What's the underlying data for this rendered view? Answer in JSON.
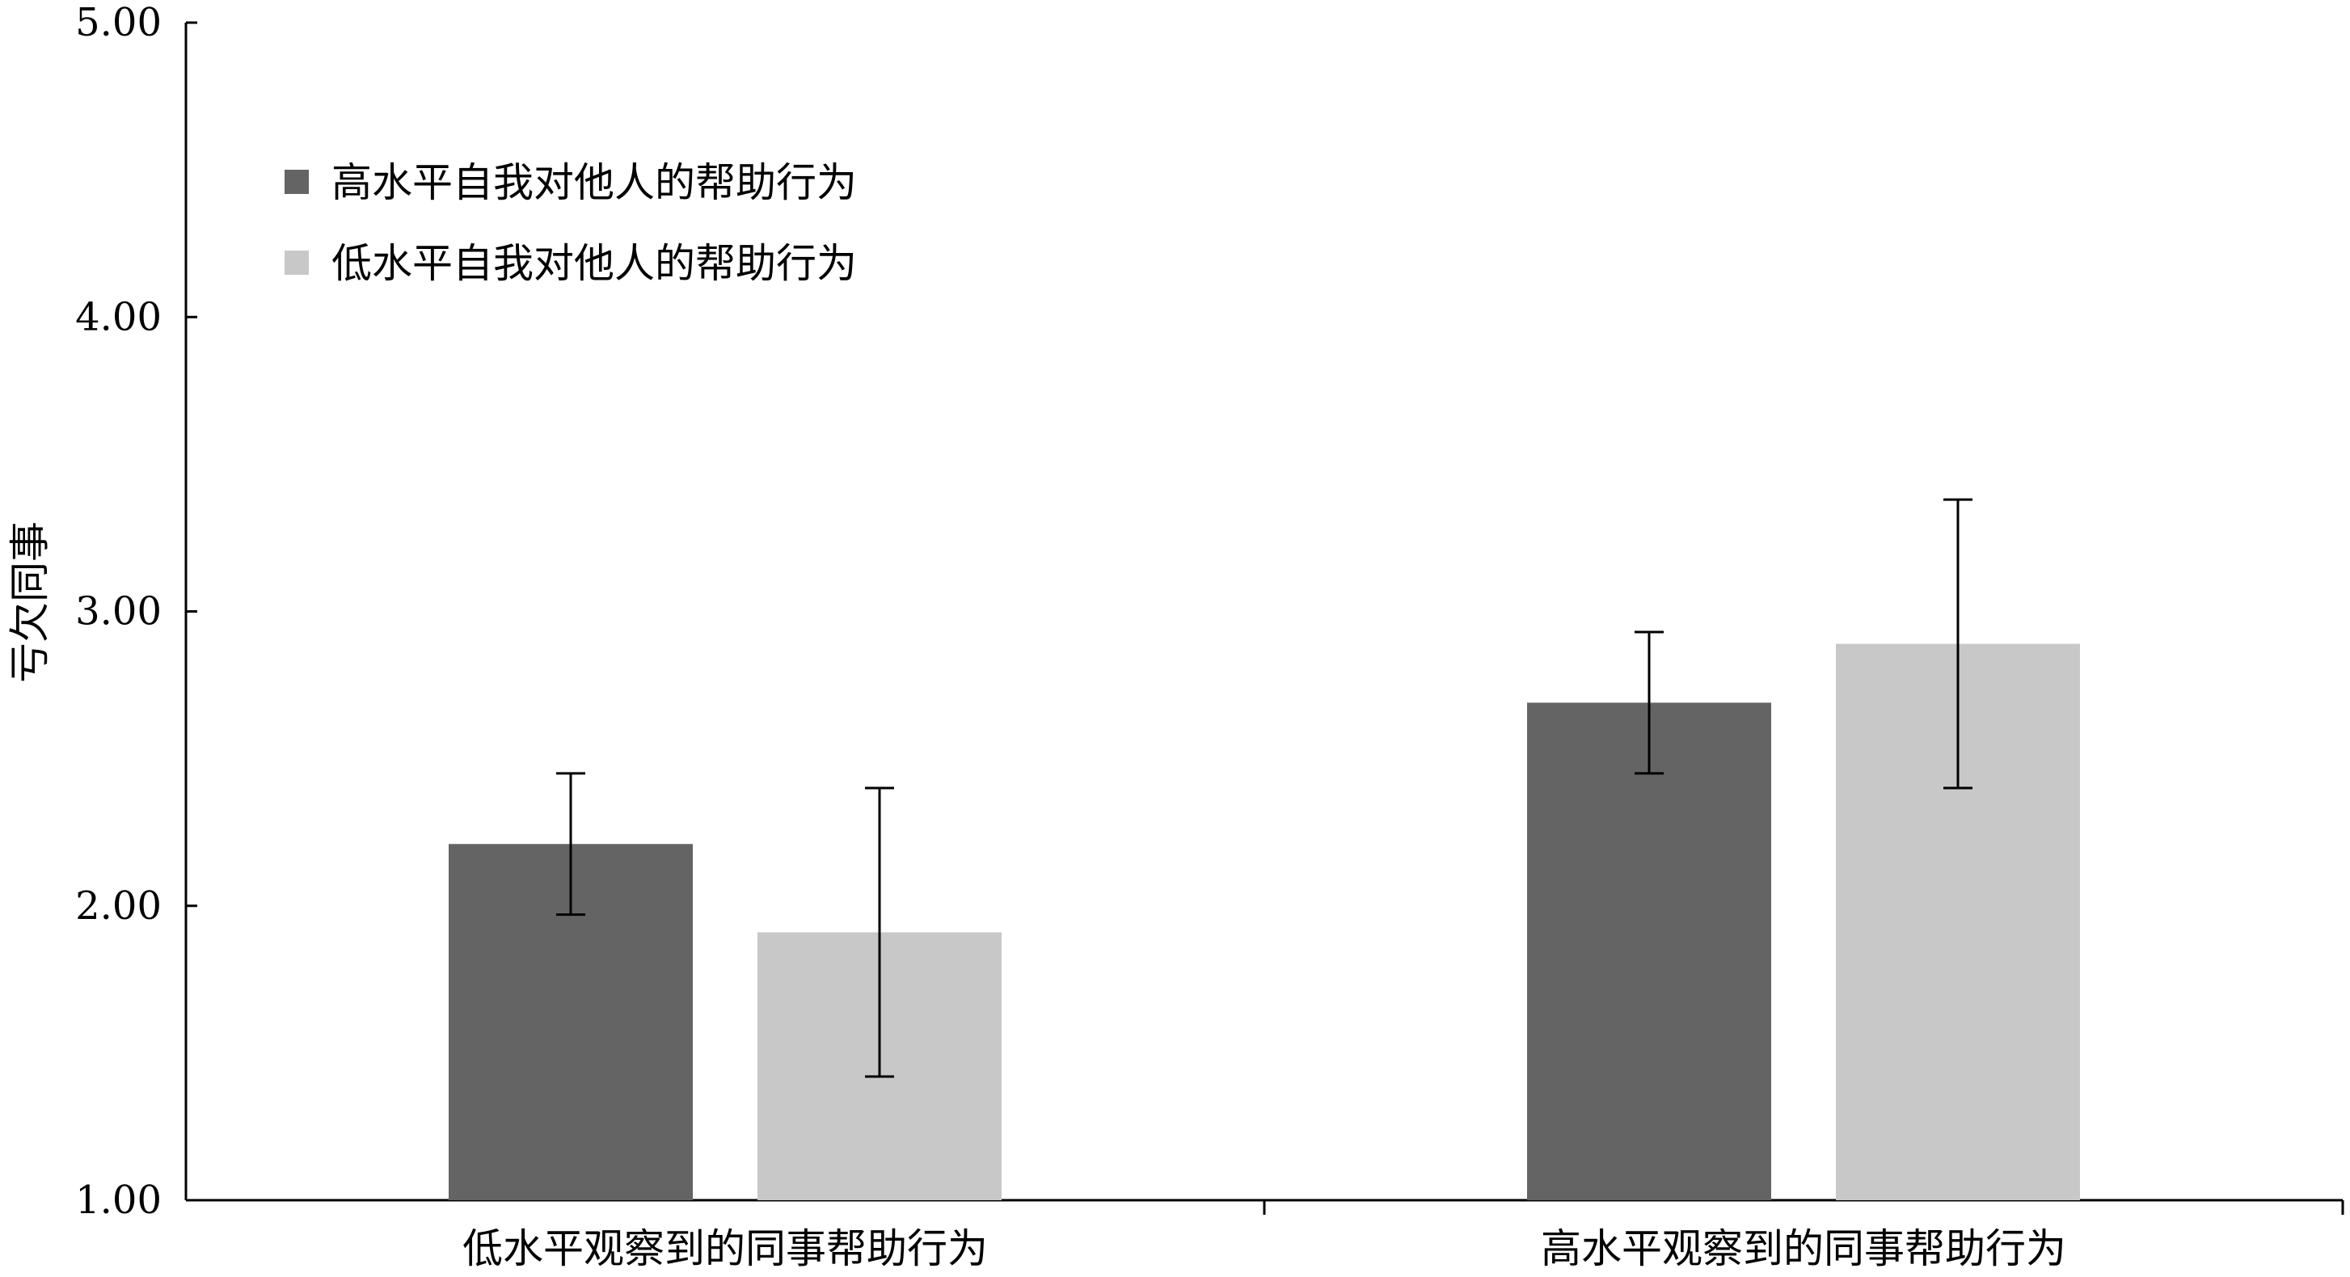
{
  "chart_data": {
    "type": "bar",
    "title": "",
    "xlabel": "",
    "ylabel": "亏欠同事",
    "ylim": [
      1,
      5
    ],
    "yticks": [
      "1.00",
      "2.00",
      "3.00",
      "4.00",
      "5.00"
    ],
    "categories": [
      "低水平观察到的同事帮助行为",
      "高水平观察到的同事帮助行为"
    ],
    "series": [
      {
        "name": "高水平自我对他人的帮助行为",
        "color": "#646464",
        "values": [
          2.21,
          2.69
        ],
        "error_low": [
          1.97,
          2.45
        ],
        "error_high": [
          2.45,
          2.93
        ]
      },
      {
        "name": "低水平自我对他人的帮助行为",
        "color": "#c8c8c8",
        "values": [
          1.91,
          2.89
        ],
        "error_low": [
          1.42,
          2.4
        ],
        "error_high": [
          2.4,
          3.38
        ]
      }
    ],
    "legend_position": "top-left",
    "grid": false
  }
}
